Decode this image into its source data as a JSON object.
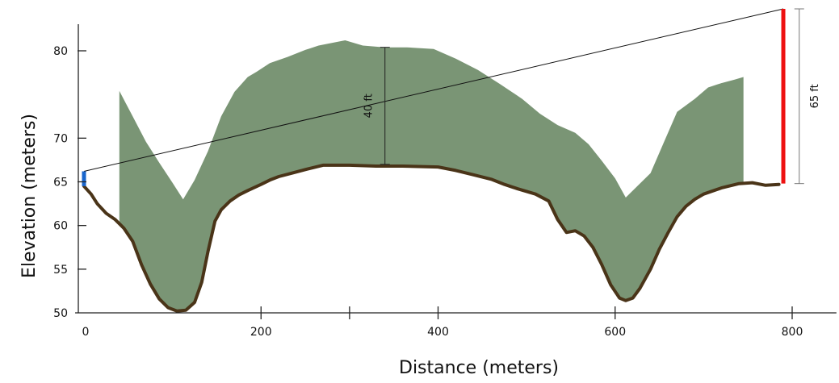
{
  "chart_data": {
    "type": "area",
    "xlabel": "Distance (meters)",
    "ylabel": "Elevation (meters)",
    "xlim": [
      -10,
      850
    ],
    "ylim": [
      50,
      84
    ],
    "x_ticks": [
      {
        "value": 0,
        "label": "0"
      },
      {
        "value": 200,
        "label": "200"
      },
      {
        "value": 300,
        "label": ""
      },
      {
        "value": 400,
        "label": "400"
      },
      {
        "value": 600,
        "label": "600"
      },
      {
        "value": 800,
        "label": "800"
      }
    ],
    "y_ticks": [
      {
        "value": 50,
        "label": "50"
      },
      {
        "value": 55,
        "label": "55"
      },
      {
        "value": 60,
        "label": "60"
      },
      {
        "value": 65,
        "label": "65"
      },
      {
        "value": 70,
        "label": "70"
      },
      {
        "value": 80,
        "label": "80"
      }
    ],
    "colors": {
      "fill": "#7a9575",
      "ground": "#4a3418",
      "sightline": "#111111",
      "start_marker": "#1a66cc",
      "end_marker": "#ee1111",
      "dimension": "#777777"
    },
    "ground_profile": [
      [
        0,
        64.5
      ],
      [
        8,
        63.6
      ],
      [
        15,
        62.5
      ],
      [
        25,
        61.4
      ],
      [
        35,
        60.7
      ],
      [
        45,
        59.7
      ],
      [
        55,
        58.2
      ],
      [
        65,
        55.5
      ],
      [
        75,
        53.3
      ],
      [
        85,
        51.6
      ],
      [
        95,
        50.6
      ],
      [
        105,
        50.2
      ],
      [
        115,
        50.3
      ],
      [
        125,
        51.2
      ],
      [
        133,
        53.5
      ],
      [
        140,
        57.0
      ],
      [
        148,
        60.5
      ],
      [
        155,
        61.8
      ],
      [
        165,
        62.8
      ],
      [
        175,
        63.5
      ],
      [
        185,
        64.0
      ],
      [
        200,
        64.7
      ],
      [
        210,
        65.2
      ],
      [
        220,
        65.6
      ],
      [
        235,
        66.0
      ],
      [
        250,
        66.4
      ],
      [
        270,
        66.9
      ],
      [
        300,
        66.9
      ],
      [
        330,
        66.8
      ],
      [
        360,
        66.8
      ],
      [
        400,
        66.7
      ],
      [
        420,
        66.3
      ],
      [
        440,
        65.8
      ],
      [
        460,
        65.3
      ],
      [
        475,
        64.7
      ],
      [
        490,
        64.2
      ],
      [
        510,
        63.6
      ],
      [
        525,
        62.8
      ],
      [
        535,
        60.7
      ],
      [
        545,
        59.2
      ],
      [
        555,
        59.4
      ],
      [
        565,
        58.8
      ],
      [
        575,
        57.5
      ],
      [
        585,
        55.5
      ],
      [
        595,
        53.2
      ],
      [
        605,
        51.7
      ],
      [
        612,
        51.4
      ],
      [
        620,
        51.7
      ],
      [
        628,
        52.8
      ],
      [
        640,
        55.0
      ],
      [
        650,
        57.3
      ],
      [
        660,
        59.2
      ],
      [
        670,
        61.0
      ],
      [
        680,
        62.2
      ],
      [
        690,
        63.0
      ],
      [
        700,
        63.6
      ],
      [
        720,
        64.3
      ],
      [
        740,
        64.8
      ],
      [
        755,
        64.9
      ],
      [
        770,
        64.6
      ],
      [
        785,
        64.7
      ]
    ],
    "viewshed_top": [
      [
        40,
        75.4
      ],
      [
        55,
        72.5
      ],
      [
        70,
        69.6
      ],
      [
        85,
        67.2
      ],
      [
        100,
        64.9
      ],
      [
        112,
        63.0
      ],
      [
        125,
        65.2
      ],
      [
        140,
        68.5
      ],
      [
        155,
        72.5
      ],
      [
        170,
        75.3
      ],
      [
        185,
        77.0
      ],
      [
        195,
        77.6
      ],
      [
        210,
        78.6
      ],
      [
        230,
        79.3
      ],
      [
        250,
        80.1
      ],
      [
        265,
        80.6
      ],
      [
        280,
        80.9
      ],
      [
        295,
        81.2
      ],
      [
        315,
        80.6
      ],
      [
        340,
        80.4
      ],
      [
        365,
        80.4
      ],
      [
        395,
        80.2
      ],
      [
        420,
        79.1
      ],
      [
        445,
        77.8
      ],
      [
        470,
        76.2
      ],
      [
        495,
        74.5
      ],
      [
        515,
        72.8
      ],
      [
        535,
        71.5
      ],
      [
        555,
        70.6
      ],
      [
        570,
        69.3
      ],
      [
        585,
        67.4
      ],
      [
        600,
        65.4
      ],
      [
        612,
        63.2
      ],
      [
        625,
        64.5
      ],
      [
        640,
        66.0
      ],
      [
        655,
        69.5
      ],
      [
        670,
        73.0
      ],
      [
        690,
        74.5
      ],
      [
        705,
        75.8
      ],
      [
        720,
        76.3
      ],
      [
        735,
        76.7
      ],
      [
        745,
        77.0
      ]
    ],
    "viewshed_bottom": [
      [
        745,
        65.0
      ],
      [
        740,
        64.8
      ],
      [
        720,
        64.3
      ],
      [
        700,
        63.6
      ],
      [
        690,
        63.0
      ],
      [
        680,
        62.2
      ],
      [
        670,
        61.0
      ],
      [
        660,
        59.2
      ],
      [
        650,
        57.3
      ],
      [
        640,
        55.0
      ],
      [
        628,
        52.8
      ],
      [
        620,
        51.7
      ],
      [
        612,
        51.4
      ],
      [
        605,
        51.7
      ],
      [
        595,
        53.2
      ],
      [
        585,
        55.5
      ],
      [
        575,
        57.5
      ],
      [
        565,
        58.8
      ],
      [
        555,
        59.4
      ],
      [
        545,
        59.2
      ],
      [
        535,
        60.7
      ],
      [
        525,
        62.8
      ],
      [
        510,
        63.6
      ],
      [
        490,
        64.2
      ],
      [
        475,
        64.7
      ],
      [
        460,
        65.3
      ],
      [
        440,
        65.8
      ],
      [
        420,
        66.3
      ],
      [
        400,
        66.7
      ],
      [
        360,
        66.8
      ],
      [
        330,
        66.8
      ],
      [
        300,
        66.9
      ],
      [
        270,
        66.9
      ],
      [
        250,
        66.4
      ],
      [
        235,
        66.0
      ],
      [
        220,
        65.6
      ],
      [
        210,
        65.2
      ],
      [
        200,
        64.7
      ],
      [
        185,
        64.0
      ],
      [
        175,
        63.5
      ],
      [
        165,
        62.8
      ],
      [
        155,
        61.8
      ],
      [
        148,
        60.5
      ],
      [
        140,
        57.0
      ],
      [
        133,
        53.5
      ],
      [
        125,
        51.2
      ],
      [
        115,
        50.3
      ],
      [
        105,
        50.2
      ],
      [
        95,
        50.6
      ],
      [
        85,
        51.6
      ],
      [
        75,
        53.3
      ],
      [
        65,
        55.5
      ],
      [
        55,
        58.2
      ],
      [
        45,
        59.7
      ],
      [
        40,
        60.2
      ]
    ],
    "sightline": {
      "x1": 0,
      "y1": 66.2,
      "x2": 790,
      "y2": 84.8
    },
    "start_marker": {
      "x": 0,
      "y_low": 64.5,
      "y_high": 66.2
    },
    "end_marker": {
      "x": 790,
      "y_low": 64.8,
      "y_high": 84.8
    },
    "annotations": [
      {
        "text": "40 ft",
        "x": 340,
        "y_low": 67.0,
        "y_high": 80.4,
        "label_x": 322
      },
      {
        "text": "65 ft",
        "x": 808,
        "y_low": 64.8,
        "y_high": 84.8,
        "label_x": 826
      }
    ]
  }
}
